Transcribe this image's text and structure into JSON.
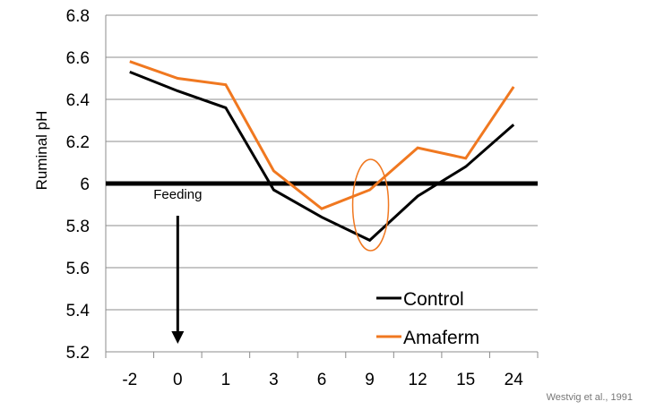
{
  "chart_data": {
    "type": "line",
    "categories": [
      "-2",
      "0",
      "1",
      "3",
      "6",
      "9",
      "12",
      "15",
      "24"
    ],
    "series": [
      {
        "name": "Control",
        "color": "#000000",
        "values": [
          6.53,
          6.44,
          6.36,
          5.97,
          5.84,
          5.73,
          5.94,
          6.08,
          6.28
        ]
      },
      {
        "name": "Amaferm",
        "color": "#f07820",
        "values": [
          6.58,
          6.5,
          6.47,
          6.06,
          5.88,
          5.97,
          6.17,
          6.12,
          6.46
        ]
      }
    ],
    "ylabel": "Ruminal pH",
    "xlabel": "",
    "ylim": [
      5.2,
      6.8
    ],
    "yticks": [
      5.2,
      5.4,
      5.6,
      5.8,
      6.0,
      6.2,
      6.4,
      6.6,
      6.8
    ],
    "ytick_labels": [
      "5.2",
      "5.4",
      "5.6",
      "5.8",
      "6",
      "6.2",
      "6.4",
      "6.6",
      "6.8"
    ],
    "grid": "horizontal",
    "legend_position": "bottom-right",
    "reference_line": {
      "value": 6.0,
      "color": "#000000"
    },
    "annotations": {
      "feeding_label": "Feeding",
      "feeding_category": "0",
      "highlight_category": "9",
      "highlight_color": "#f07820"
    },
    "source_note": "Westvig et al., 1991"
  }
}
